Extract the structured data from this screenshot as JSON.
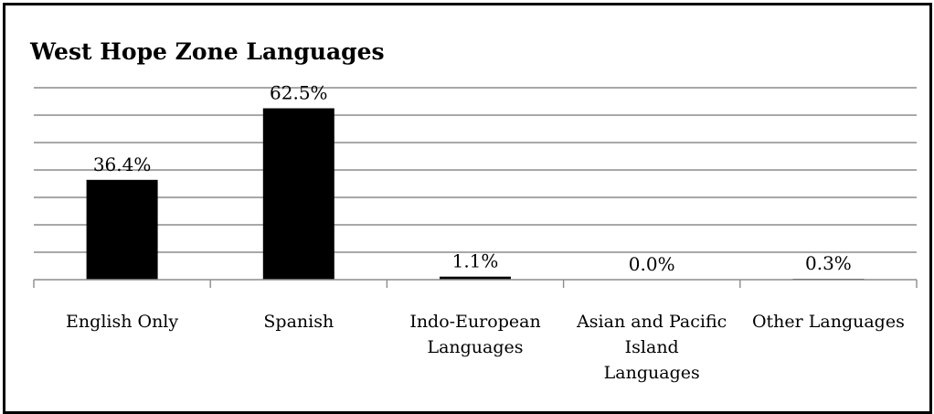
{
  "chart_data": {
    "type": "bar",
    "title": "West Hope Zone Languages",
    "categories": [
      [
        "English Only"
      ],
      [
        "Spanish"
      ],
      [
        "Indo-European",
        "Languages"
      ],
      [
        "Asian and Pacific",
        "Island",
        "Languages"
      ],
      [
        "Other Languages"
      ]
    ],
    "values": [
      36.4,
      62.5,
      1.1,
      0.0,
      0.3
    ],
    "data_labels": [
      "36.4%",
      "62.5%",
      "1.1%",
      "0.0%",
      "0.3%"
    ],
    "xlabel": "",
    "ylabel": "",
    "ylim": [
      0,
      70
    ],
    "grid": true,
    "legend": "none",
    "bar_color": "#000000",
    "grid_color": "#8c8c8c"
  }
}
